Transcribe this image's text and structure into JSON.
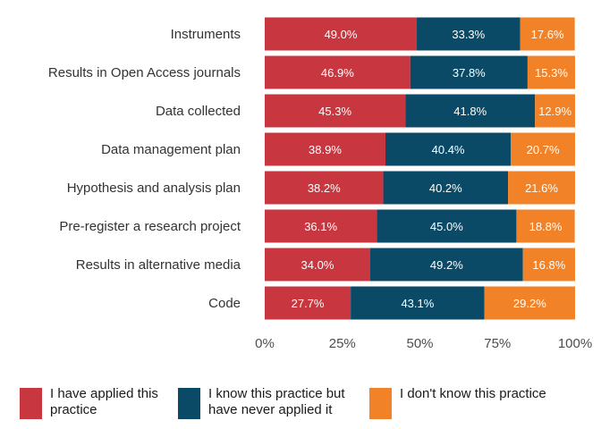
{
  "chart_data": {
    "type": "bar",
    "orientation": "horizontal",
    "stacked": true,
    "categories": [
      "Instruments",
      "Results in Open Access journals",
      "Data collected",
      "Data management plan",
      "Hypothesis and analysis plan",
      "Pre-register a research project",
      "Results in alternative media",
      "Code"
    ],
    "series": [
      {
        "name": "I have applied this practice",
        "color": "#c8373f",
        "values": [
          49.0,
          46.9,
          45.3,
          38.9,
          38.2,
          36.1,
          34.0,
          27.7
        ]
      },
      {
        "name": "I know this practice but have never applied it",
        "color": "#0a4a66",
        "values": [
          33.3,
          37.8,
          41.8,
          40.4,
          40.2,
          45.0,
          49.2,
          43.1
        ]
      },
      {
        "name": "I don't know this practice",
        "color": "#f28227",
        "values": [
          17.6,
          15.3,
          12.9,
          20.7,
          21.6,
          18.8,
          16.8,
          29.2
        ]
      }
    ],
    "xlim": [
      0,
      100
    ],
    "x_ticks": [
      "0%",
      "25%",
      "50%",
      "75%",
      "100%"
    ],
    "grid": false,
    "legend_position": "bottom"
  }
}
